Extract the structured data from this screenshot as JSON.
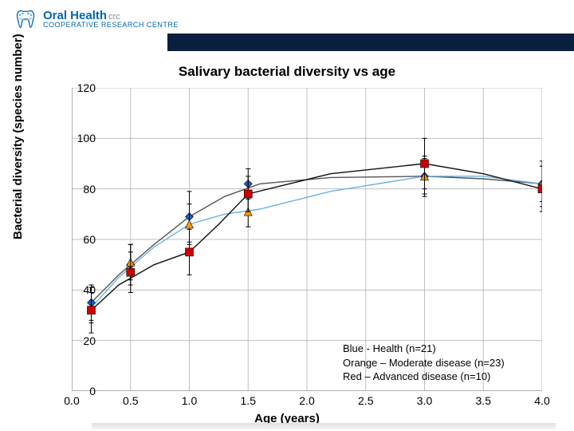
{
  "brand": {
    "line1": "Oral Health",
    "line2": "COOPERATIVE RESEARCH CENTRE",
    "crc": "crc"
  },
  "chart": {
    "type": "line-scatter",
    "title": "Salivary bacterial diversity vs age",
    "title_fontsize": 17,
    "xlabel": "Age (years)",
    "ylabel": "Bacterial diversity (species number)",
    "axis_fontsize": 15,
    "tick_fontsize": 14,
    "xlim": [
      0,
      4
    ],
    "ylim": [
      0,
      120
    ],
    "xticks": [
      0.0,
      0.5,
      1.0,
      1.5,
      2.0,
      2.5,
      3.0,
      3.5,
      4.0
    ],
    "yticks": [
      0,
      20,
      40,
      60,
      80,
      100,
      120
    ],
    "xgrid": [
      0.5,
      1.0,
      1.5,
      2.0,
      2.5,
      3.0,
      3.5,
      4.0
    ],
    "ygrid": [
      20,
      40,
      60,
      80,
      100,
      120
    ],
    "grid_color": "#bfbfbf",
    "axis_color": "#808080",
    "background_color": "#ffffff",
    "series": [
      {
        "name": "health",
        "x": [
          0.166,
          0.5,
          1.0,
          1.5,
          3.0,
          4.0
        ],
        "y": [
          35,
          50,
          69,
          82,
          85,
          82
        ],
        "err": [
          7,
          8,
          10,
          6,
          8,
          9
        ],
        "color": "#1f5bbf",
        "marker": "diamond",
        "line": "#555555",
        "curve": [
          [
            0.166,
            35
          ],
          [
            0.4,
            46
          ],
          [
            0.7,
            58
          ],
          [
            1.0,
            69
          ],
          [
            1.3,
            77
          ],
          [
            1.6,
            82
          ],
          [
            2.2,
            84.5
          ],
          [
            3.0,
            85
          ],
          [
            3.5,
            84
          ],
          [
            4.0,
            82
          ]
        ]
      },
      {
        "name": "moderate",
        "x": [
          0.166,
          0.5,
          1.0,
          1.5,
          3.0,
          4.0
        ],
        "y": [
          33,
          51,
          66,
          71,
          85,
          82
        ],
        "err": [
          6,
          7,
          8,
          6,
          7,
          7
        ],
        "color": "#ff9900",
        "marker": "triangle",
        "line": "#6bb4e3",
        "curve": [
          [
            0.166,
            33
          ],
          [
            0.4,
            45
          ],
          [
            0.7,
            57
          ],
          [
            1.0,
            66
          ],
          [
            1.3,
            70
          ],
          [
            1.6,
            72
          ],
          [
            2.2,
            79
          ],
          [
            3.0,
            85
          ],
          [
            3.5,
            85
          ],
          [
            4.0,
            82
          ]
        ]
      },
      {
        "name": "advanced",
        "x": [
          0.166,
          0.5,
          1.0,
          1.5,
          3.0,
          4.0
        ],
        "y": [
          32,
          47,
          55,
          78,
          90,
          80
        ],
        "err": [
          9,
          8,
          9,
          7,
          10,
          9
        ],
        "color": "#cc0000",
        "marker": "square",
        "line": "#111111",
        "curve": [
          [
            0.166,
            32
          ],
          [
            0.4,
            42
          ],
          [
            0.7,
            50
          ],
          [
            1.0,
            55
          ],
          [
            1.25,
            66
          ],
          [
            1.5,
            78
          ],
          [
            2.2,
            86
          ],
          [
            3.0,
            90
          ],
          [
            3.5,
            86
          ],
          [
            4.0,
            80
          ]
        ]
      }
    ],
    "marker_size": 10,
    "line_width": 1.4,
    "error_cap": 6,
    "legend": {
      "lines": [
        "Blue - Health (n=21)",
        "Orange – Moderate disease (n=23)",
        "Red – Advanced disease (n=10)"
      ]
    }
  },
  "header": {
    "bar_color": "#0a1f3d"
  }
}
